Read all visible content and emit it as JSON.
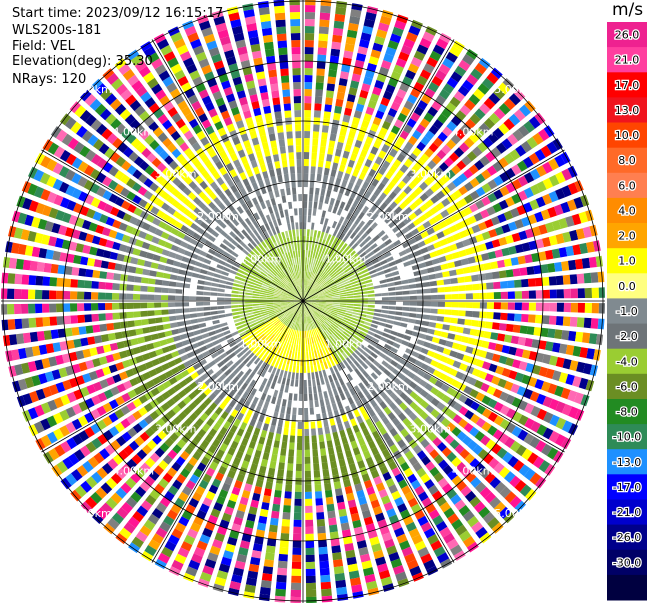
{
  "header": {
    "start_time": "Start time: 2023/09/12 16:15:17",
    "instrument": "WLS200s-181",
    "field": "Field: VEL",
    "elevation": "Elevation(deg): 35.30",
    "nrays": "NRays: 120"
  },
  "chart_data": {
    "type": "heatmap",
    "projection": "polar-ppi",
    "field": "VEL",
    "units": "m/s",
    "nrays": 120,
    "elevation_deg": 35.3,
    "range_ring_labels": [
      "1.00km",
      "2.00km",
      "3.00km",
      "4.00km",
      "5.00km"
    ],
    "range_rings_km": [
      1,
      2,
      3,
      4,
      5
    ],
    "azimuth_lines_deg": [
      0,
      30,
      60,
      90,
      120,
      150,
      180,
      210,
      240,
      270,
      300,
      330
    ],
    "grid": true,
    "colorbar": {
      "unit_label": "m/s",
      "ticks": [
        "26.0",
        "21.0",
        "17.0",
        "13.0",
        "10.0",
        "8.0",
        "6.0",
        "4.0",
        "2.0",
        "1.0",
        "0.0",
        "-1.0",
        "-2.0",
        "-4.0",
        "-6.0",
        "-8.0",
        "-10.0",
        "-13.0",
        "-17.0",
        "-21.0",
        "-26.0",
        "-30.0"
      ],
      "colors": [
        "#ee2290",
        "#ff3f9f",
        "#ff0000",
        "#f0141e",
        "#ff4500",
        "#ff6a28",
        "#ff7f50",
        "#ff8c00",
        "#ffa500",
        "#ffff00",
        "#ffff80",
        "#808a90",
        "#6e7478",
        "#9acd32",
        "#6b8e23",
        "#228b22",
        "#2e8b57",
        "#1e90ff",
        "#0000ff",
        "#0000cd",
        "#00008b",
        "#000066",
        "#000040"
      ]
    },
    "regions": [
      {
        "range_km": [
          0,
          0.5
        ],
        "dominant": "light-green/yellow"
      },
      {
        "range_km": [
          0.5,
          2.2
        ],
        "dominant": "gray (near 0 m/s)"
      },
      {
        "range_km": [
          2.2,
          3.2
        ],
        "dominant": "yellow north-east, olive-green south-west"
      },
      {
        "range_km": [
          3.2,
          5.6
        ],
        "dominant": "noise (all colors)"
      }
    ]
  }
}
